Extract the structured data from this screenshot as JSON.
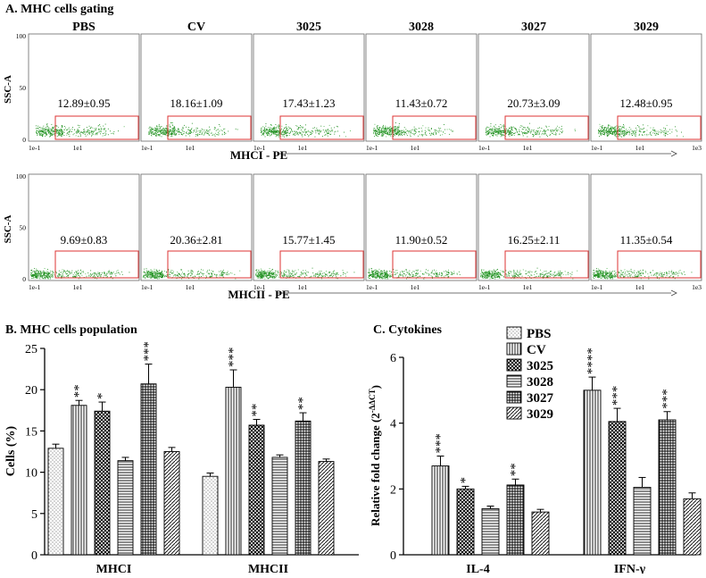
{
  "chart_data": [
    {
      "type": "scatter",
      "panel_label": "A. MHC cells gating",
      "groups": [
        "PBS",
        "CV",
        "3025",
        "3028",
        "3027",
        "3029"
      ],
      "rows": [
        {
          "name": "MHCI",
          "xlabel": "MHCI - PE",
          "ylabel": "SSC-A",
          "y_ticks": [
            "100",
            "50",
            "0"
          ],
          "x_tick_left": "1e-1",
          "x_tick_mid": "1e1",
          "x_tick_right": "1e3",
          "gate_values": [
            "12.89±0.95",
            "18.16±1.09",
            "17.43±1.23",
            "11.43±0.72",
            "20.73±3.09",
            "12.48±0.95"
          ],
          "ylim": [
            0,
            100
          ]
        },
        {
          "name": "MHCII",
          "xlabel": "MHCII - PE",
          "ylabel": "SSC-A",
          "y_ticks": [
            "100",
            "50",
            "0"
          ],
          "x_tick_left": "1e-1",
          "x_tick_mid": "1e1",
          "x_tick_right": "1e3",
          "gate_values": [
            "9.69±0.83",
            "20.36±2.81",
            "15.77±1.45",
            "11.90±0.52",
            "16.25±2.11",
            "11.35±0.54"
          ],
          "ylim": [
            0,
            100
          ]
        }
      ]
    },
    {
      "type": "bar",
      "panel_label": "B. MHC cells population",
      "categories": [
        "MHCI",
        "MHCII"
      ],
      "series": [
        {
          "name": "PBS",
          "values": [
            12.9,
            9.5
          ],
          "errors": [
            0.5,
            0.4
          ],
          "sig": [
            "",
            ""
          ]
        },
        {
          "name": "CV",
          "values": [
            18.1,
            20.3
          ],
          "errors": [
            0.6,
            2.1
          ],
          "sig": [
            "**",
            "***"
          ]
        },
        {
          "name": "3025",
          "values": [
            17.4,
            15.7
          ],
          "errors": [
            1.1,
            0.7
          ],
          "sig": [
            "*",
            "**"
          ]
        },
        {
          "name": "3028",
          "values": [
            11.4,
            11.8
          ],
          "errors": [
            0.4,
            0.3
          ],
          "sig": [
            "",
            ""
          ]
        },
        {
          "name": "3027",
          "values": [
            20.7,
            16.2
          ],
          "errors": [
            2.4,
            1.0
          ],
          "sig": [
            "***",
            "**"
          ]
        },
        {
          "name": "3029",
          "values": [
            12.5,
            11.3
          ],
          "errors": [
            0.5,
            0.3
          ],
          "sig": [
            "",
            ""
          ]
        }
      ],
      "ylabel": "Cells (%)",
      "ylim": [
        0,
        25
      ],
      "yticks": [
        0,
        5,
        10,
        15,
        20,
        25
      ]
    },
    {
      "type": "bar",
      "panel_label": "C. Cytokines",
      "categories": [
        "IL-4",
        "IFN-γ"
      ],
      "series": [
        {
          "name": "PBS",
          "values": [
            null,
            null
          ],
          "errors": [
            null,
            null
          ],
          "sig": [
            "",
            ""
          ]
        },
        {
          "name": "CV",
          "values": [
            2.7,
            5.0
          ],
          "errors": [
            0.3,
            0.4
          ],
          "sig": [
            "***",
            "****"
          ]
        },
        {
          "name": "3025",
          "values": [
            2.0,
            4.05
          ],
          "errors": [
            0.08,
            0.4
          ],
          "sig": [
            "*",
            "***"
          ]
        },
        {
          "name": "3028",
          "values": [
            1.4,
            2.05
          ],
          "errors": [
            0.08,
            0.3
          ],
          "sig": [
            "",
            ""
          ]
        },
        {
          "name": "3027",
          "values": [
            2.12,
            4.1
          ],
          "errors": [
            0.18,
            0.25
          ],
          "sig": [
            "**",
            "***"
          ]
        },
        {
          "name": "3029",
          "values": [
            1.3,
            1.7
          ],
          "errors": [
            0.08,
            0.18
          ],
          "sig": [
            "",
            ""
          ]
        }
      ],
      "ylabel_prefix": "Relative fold change (2",
      "ylabel_sup": "-ΔΔCT",
      "ylabel_suffix": ")",
      "ylim": [
        0,
        6
      ],
      "yticks": [
        0,
        2,
        4,
        6
      ]
    }
  ]
}
